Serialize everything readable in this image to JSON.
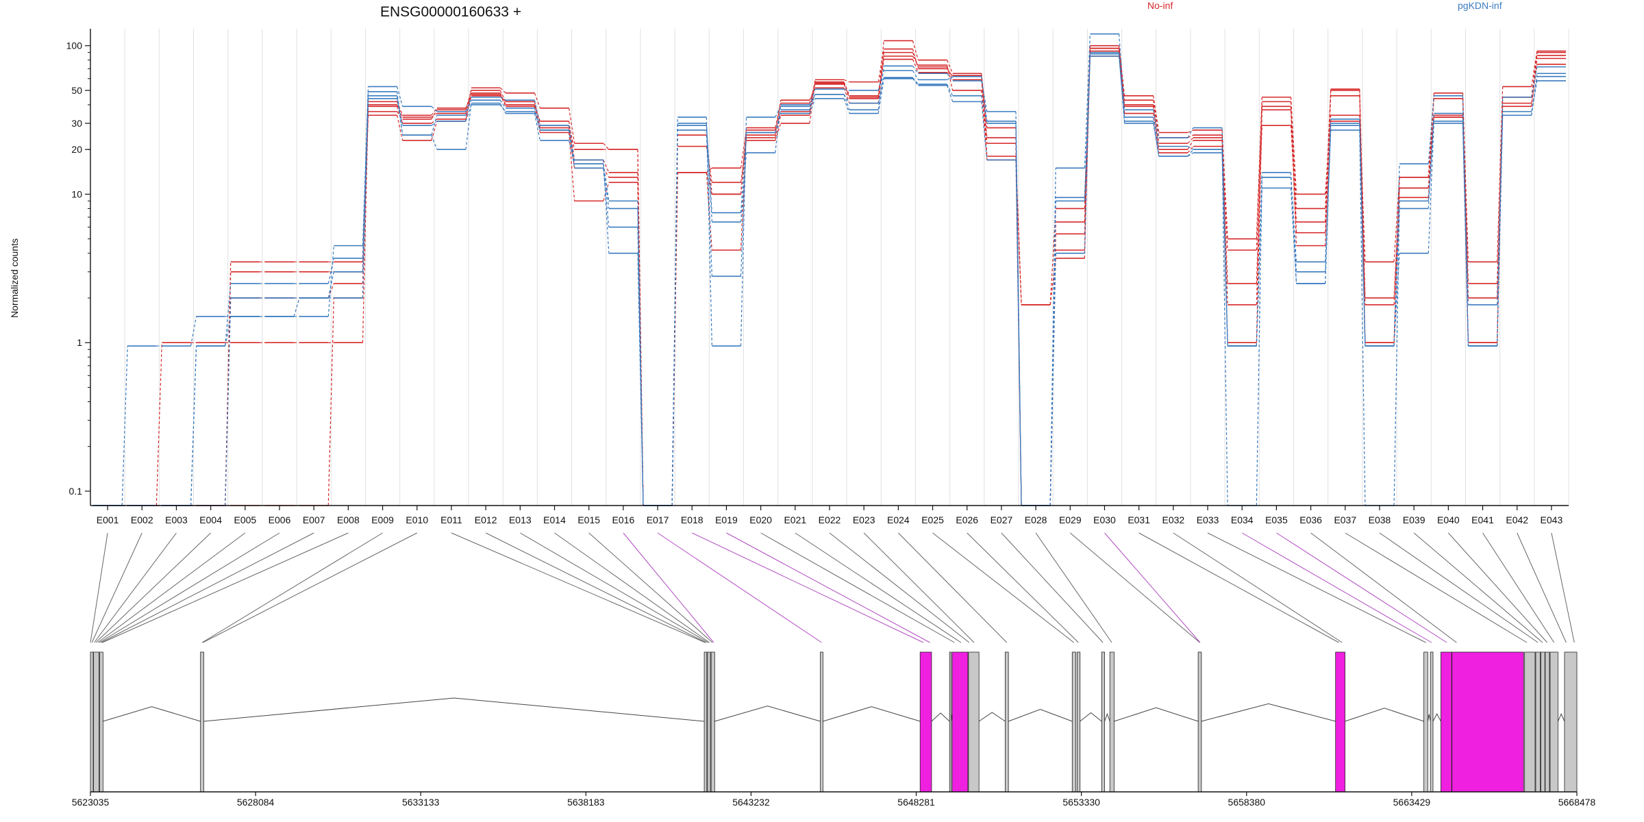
{
  "chart_data": {
    "type": "line",
    "title": "ENSG00000160633 +",
    "ylabel": "Normalized counts",
    "y_scale": "log",
    "ylim": [
      0.08,
      130
    ],
    "y_ticks": [
      "0.1",
      "1",
      "10",
      "20",
      "30",
      "50",
      "100"
    ],
    "legend": [
      {
        "name": "No-inf",
        "color": "#d62728"
      },
      {
        "name": "pgKDN-inf",
        "color": "#3a7bbf"
      }
    ],
    "grid": true,
    "categories": [
      "E001",
      "E002",
      "E003",
      "E004",
      "E005",
      "E006",
      "E007",
      "E008",
      "E009",
      "E010",
      "E011",
      "E012",
      "E013",
      "E014",
      "E015",
      "E016",
      "E017",
      "E018",
      "E019",
      "E020",
      "E021",
      "E022",
      "E023",
      "E024",
      "E025",
      "E026",
      "E027",
      "E028",
      "E029",
      "E030",
      "E031",
      "E032",
      "E033",
      "E034",
      "E035",
      "E036",
      "E037",
      "E038",
      "E039",
      "E040",
      "E041",
      "E042",
      "E043"
    ],
    "series": [
      {
        "group": "No-inf",
        "values": [
          0.08,
          0.08,
          0.08,
          0.08,
          3.5,
          3.5,
          3.5,
          3.5,
          34,
          23,
          31,
          52,
          48,
          38,
          22,
          20,
          0.08,
          21,
          12,
          23,
          30,
          56,
          45,
          108,
          80,
          65,
          28,
          0.08,
          4.2,
          100,
          46,
          26,
          27,
          5,
          45,
          10,
          34,
          3.5,
          13,
          48,
          3.5,
          53,
          92
        ]
      },
      {
        "group": "No-inf",
        "values": [
          0.08,
          0.08,
          1,
          1,
          1,
          1,
          1,
          1,
          40,
          33,
          35,
          48,
          40,
          31,
          17,
          14,
          0.08,
          14,
          15,
          27,
          36,
          59,
          57,
          95,
          70,
          62,
          24,
          0.08,
          5.4,
          92,
          43,
          24,
          25,
          4.2,
          42,
          8,
          50,
          2,
          11,
          44,
          2,
          45,
          86
        ]
      },
      {
        "group": "No-inf",
        "values": [
          0.08,
          0.08,
          0.08,
          0.08,
          3,
          3,
          3,
          3,
          36,
          32,
          37,
          50,
          42,
          28,
          15,
          13,
          0.08,
          14,
          4.2,
          25,
          43,
          52,
          41,
          90,
          72,
          59,
          22,
          0.08,
          6.5,
          85,
          39,
          20,
          23,
          2.5,
          29,
          6.5,
          46,
          1,
          9.5,
          34,
          2.5,
          39,
          82
        ]
      },
      {
        "group": "No-inf",
        "values": [
          0.08,
          0.08,
          0.08,
          0.08,
          0.08,
          0.08,
          0.08,
          2,
          42,
          34,
          38,
          47,
          39,
          26,
          9,
          12,
          0.08,
          14,
          10,
          24,
          34,
          57,
          46,
          85,
          74,
          50,
          17,
          1.8,
          3.7,
          96,
          35,
          19,
          21,
          1,
          37,
          5.5,
          31,
          1.8,
          11,
          33,
          1,
          41,
          75
        ]
      },
      {
        "group": "No-inf",
        "values": [
          0.08,
          0.08,
          0.08,
          0.08,
          2,
          2,
          2,
          2.5,
          39,
          30,
          32,
          46,
          42,
          29,
          20,
          20,
          0.08,
          25,
          10,
          28,
          41,
          55,
          44,
          81,
          66,
          63,
          18,
          1.8,
          8,
          96,
          40,
          22,
          24,
          1.8,
          39,
          4.5,
          51,
          1,
          13,
          33,
          1,
          45,
          90
        ]
      },
      {
        "group": "pgKDN-inf",
        "values": [
          0.08,
          0.95,
          0.95,
          1.5,
          1.5,
          1.5,
          1.5,
          4.5,
          53,
          39,
          36,
          45,
          43,
          29,
          16,
          9,
          0.08,
          33,
          0.95,
          33,
          39,
          47,
          37,
          73,
          65,
          58,
          36,
          0.08,
          15,
          120,
          37,
          24,
          28,
          0.95,
          14,
          2.5,
          32,
          0.95,
          16,
          46,
          0.95,
          45,
          72
        ]
      },
      {
        "group": "pgKDN-inf",
        "values": [
          0.08,
          0.08,
          0.08,
          0.95,
          2.5,
          2.5,
          2.5,
          3.7,
          49,
          25,
          20,
          41,
          35,
          23,
          16,
          8,
          0.08,
          30,
          6.5,
          19,
          40,
          51,
          50,
          68,
          59,
          62,
          31,
          0.08,
          9,
          90,
          31,
          18,
          19,
          0.95,
          11,
          2.5,
          29,
          0.95,
          8,
          35,
          0.95,
          36,
          58
        ]
      },
      {
        "group": "pgKDN-inf",
        "values": [
          0.08,
          0.08,
          0.08,
          0.08,
          2,
          2,
          2,
          3,
          46,
          25,
          34,
          43,
          38,
          27,
          15,
          6,
          0.08,
          29,
          7.5,
          26,
          37,
          47,
          41,
          61,
          55,
          46,
          30,
          0.08,
          9.5,
          85,
          33,
          21,
          20,
          0.08,
          13,
          3.5,
          27,
          0.08,
          9,
          31,
          1.8,
          34,
          62
        ]
      },
      {
        "group": "pgKDN-inf",
        "values": [
          0.08,
          0.08,
          0.08,
          0.95,
          1.5,
          1.5,
          2,
          2,
          44,
          29,
          31,
          40,
          36,
          27,
          17,
          4,
          0.08,
          27,
          2.8,
          26,
          35,
          44,
          35,
          60,
          54,
          42,
          17,
          0.08,
          4,
          88,
          30,
          18,
          20,
          0.95,
          13,
          3,
          30,
          0.95,
          4,
          30,
          0.95,
          34,
          65
        ]
      }
    ],
    "genomic_axis": {
      "ticks": [
        "5623035",
        "5628084",
        "5633133",
        "5638183",
        "5643232",
        "5648281",
        "5653330",
        "5658380",
        "5663429",
        "5668478"
      ],
      "range": [
        5623035,
        5668478
      ]
    },
    "exon_blocks": [
      {
        "start": 5623035,
        "end": 5623120,
        "type": "normal"
      },
      {
        "start": 5623130,
        "end": 5623300,
        "type": "normal"
      },
      {
        "start": 5623320,
        "end": 5623420,
        "type": "normal"
      },
      {
        "start": 5626400,
        "end": 5626500,
        "type": "normal"
      },
      {
        "start": 5641800,
        "end": 5641880,
        "type": "normal"
      },
      {
        "start": 5641900,
        "end": 5641990,
        "type": "normal"
      },
      {
        "start": 5642010,
        "end": 5642120,
        "type": "normal"
      },
      {
        "start": 5645350,
        "end": 5645430,
        "type": "normal"
      },
      {
        "start": 5648400,
        "end": 5648750,
        "type": "de"
      },
      {
        "start": 5649300,
        "end": 5649330,
        "type": "normal"
      },
      {
        "start": 5649380,
        "end": 5649860,
        "type": "de"
      },
      {
        "start": 5649880,
        "end": 5650200,
        "type": "normal"
      },
      {
        "start": 5651000,
        "end": 5651100,
        "type": "normal"
      },
      {
        "start": 5653050,
        "end": 5653160,
        "type": "normal"
      },
      {
        "start": 5653200,
        "end": 5653290,
        "type": "normal"
      },
      {
        "start": 5653950,
        "end": 5654040,
        "type": "normal"
      },
      {
        "start": 5654200,
        "end": 5654330,
        "type": "normal"
      },
      {
        "start": 5656900,
        "end": 5657000,
        "type": "normal"
      },
      {
        "start": 5661100,
        "end": 5661390,
        "type": "de"
      },
      {
        "start": 5663800,
        "end": 5663920,
        "type": "normal"
      },
      {
        "start": 5664000,
        "end": 5664080,
        "type": "normal"
      },
      {
        "start": 5664320,
        "end": 5664650,
        "type": "de"
      },
      {
        "start": 5664660,
        "end": 5666850,
        "type": "de"
      },
      {
        "start": 5666880,
        "end": 5667200,
        "type": "normal"
      },
      {
        "start": 5667220,
        "end": 5667360,
        "type": "normal"
      },
      {
        "start": 5667380,
        "end": 5667500,
        "type": "normal"
      },
      {
        "start": 5667510,
        "end": 5667640,
        "type": "normal"
      },
      {
        "start": 5667660,
        "end": 5667900,
        "type": "normal"
      },
      {
        "start": 5668100,
        "end": 5668478,
        "type": "normal"
      }
    ],
    "exon_positions": [
      5623035,
      5623080,
      5623150,
      5623200,
      5623260,
      5623310,
      5623360,
      5623400,
      5626450,
      5626470,
      5641830,
      5641860,
      5641920,
      5641960,
      5642050,
      5642090,
      5645390,
      5648500,
      5648700,
      5649450,
      5649650,
      5649900,
      5650050,
      5651050,
      5653100,
      5653240,
      5653990,
      5654260,
      5656950,
      5656960,
      5661200,
      5661300,
      5663860,
      5664040,
      5664500,
      5664800,
      5666950,
      5667290,
      5667430,
      5667570,
      5667780,
      5668150,
      5668400
    ],
    "de_exons": [
      "E016",
      "E017",
      "E018",
      "E019",
      "E030",
      "E034",
      "E035"
    ],
    "colors": {
      "de": "#f020e0",
      "exon": "#c8c8c8",
      "de_link": "#b04cc0",
      "link": "#666666",
      "grid": "#e0e0e0"
    }
  }
}
